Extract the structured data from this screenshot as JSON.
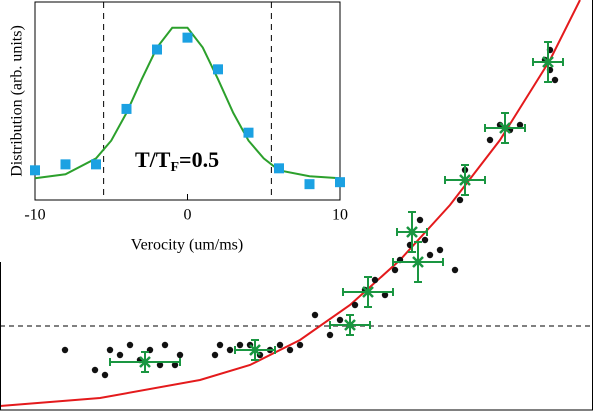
{
  "chart_data": [
    {
      "type": "scatter",
      "xlim": [
        0,
        59.4
      ],
      "ylim": [
        0,
        41
      ],
      "hline": 8.4,
      "series": [
        {
          "color": "#111111",
          "x": [
            6.5,
            9.5,
            10.5,
            11,
            12,
            13,
            14,
            15,
            16,
            17.5,
            16.5,
            18,
            21.5,
            22,
            23,
            24,
            25,
            26,
            27,
            28,
            29,
            30,
            31.5,
            33,
            34,
            35,
            35.5,
            36.5,
            37.5,
            38.5,
            39.5,
            40,
            41,
            42,
            42.5,
            43,
            44,
            45.5,
            46.5,
            46,
            49,
            50,
            51,
            52,
            54.5,
            55,
            55.5,
            55
          ],
          "y": [
            6,
            4,
            3.5,
            6,
            5.5,
            6.5,
            5,
            6,
            4.5,
            4.5,
            6.5,
            5.5,
            5.5,
            6.5,
            6,
            6.5,
            6.5,
            5.5,
            6,
            6.5,
            6,
            6.5,
            9.5,
            7.5,
            9,
            8.5,
            10.5,
            12,
            13,
            11.5,
            14,
            15,
            16.5,
            19,
            17,
            15.5,
            16,
            14,
            24,
            21,
            27,
            28.5,
            28,
            28.5,
            35,
            34,
            33,
            36
          ]
        },
        {
          "color": "#1a9641",
          "x": [
            14.5,
            25.5,
            35,
            36.8,
            41.8,
            41.2,
            46.5,
            50.5,
            54.8
          ],
          "y": [
            4.8,
            6,
            8.5,
            11.8,
            14.8,
            17.8,
            23,
            28.2,
            34.8
          ],
          "xerr": [
            3.5,
            2,
            2,
            2.5,
            2.5,
            1.5,
            2,
            2,
            1.5
          ],
          "yerr": [
            1,
            1,
            1,
            1.5,
            2,
            2,
            1.5,
            1.5,
            2
          ]
        }
      ],
      "curve": {
        "color": "#e41a1c",
        "x": [
          0,
          10,
          20,
          25,
          30,
          35,
          40,
          45,
          50,
          55,
          58
        ],
        "y": [
          0.4,
          1.2,
          3,
          4.5,
          7,
          10.5,
          15,
          20.5,
          27,
          35,
          41
        ]
      }
    },
    {
      "type": "scatter",
      "xlim": [
        -10,
        10
      ],
      "ylim": [
        0,
        1
      ],
      "xticks": [
        -10,
        0,
        10
      ],
      "xlabel": "Verocity (um/ms)",
      "ylabel": "Distribution (arb. units)",
      "annotation_parts": [
        "T/T",
        "F",
        "=0.5"
      ],
      "vlines": [
        -5.5,
        5.5
      ],
      "series": [
        {
          "color": "#1ba1e2",
          "x": [
            -10,
            -8,
            -6,
            -4,
            -2,
            0,
            2,
            4,
            6,
            8,
            10
          ],
          "y": [
            0.15,
            0.18,
            0.18,
            0.46,
            0.76,
            0.82,
            0.66,
            0.34,
            0.16,
            0.08,
            0.09
          ]
        }
      ],
      "curve": {
        "color": "#2ca02c",
        "x": [
          -10,
          -8,
          -6,
          -5,
          -4,
          -3,
          -2,
          -1,
          0,
          1,
          2,
          3,
          4,
          5,
          6,
          8,
          10
        ],
        "y": [
          0.11,
          0.13,
          0.21,
          0.3,
          0.44,
          0.61,
          0.77,
          0.87,
          0.87,
          0.77,
          0.61,
          0.44,
          0.3,
          0.21,
          0.15,
          0.12,
          0.11
        ]
      }
    }
  ]
}
